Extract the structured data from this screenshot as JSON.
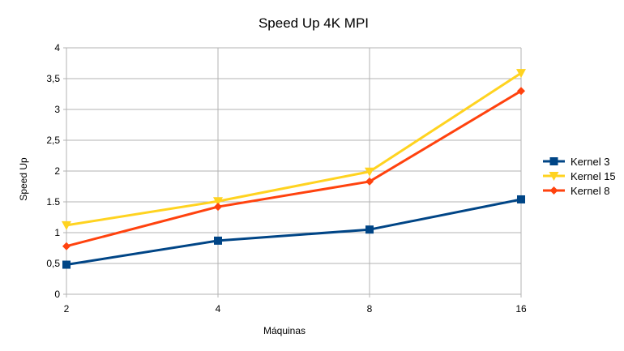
{
  "chart_data": {
    "type": "line",
    "title": "Speed Up 4K MPI",
    "xlabel": "Máquinas",
    "ylabel": "Speed Up",
    "categories": [
      "2",
      "4",
      "8",
      "16"
    ],
    "y_ticks": [
      "0",
      "0,5",
      "1",
      "1.5",
      "2",
      "2,5",
      "3",
      "3,5",
      "4"
    ],
    "ylim": [
      0,
      4
    ],
    "grid": true,
    "legend_position": "right",
    "series": [
      {
        "name": "Kernel 3",
        "values": [
          0.48,
          0.87,
          1.05,
          1.54
        ],
        "color": "#004586",
        "marker": "square"
      },
      {
        "name": "Kernel 15",
        "values": [
          1.12,
          1.51,
          1.99,
          3.59
        ],
        "color": "#ffd320",
        "marker": "triangle-down"
      },
      {
        "name": "Kernel 8",
        "values": [
          0.78,
          1.42,
          1.83,
          3.3
        ],
        "color": "#ff420e",
        "marker": "diamond"
      }
    ]
  }
}
